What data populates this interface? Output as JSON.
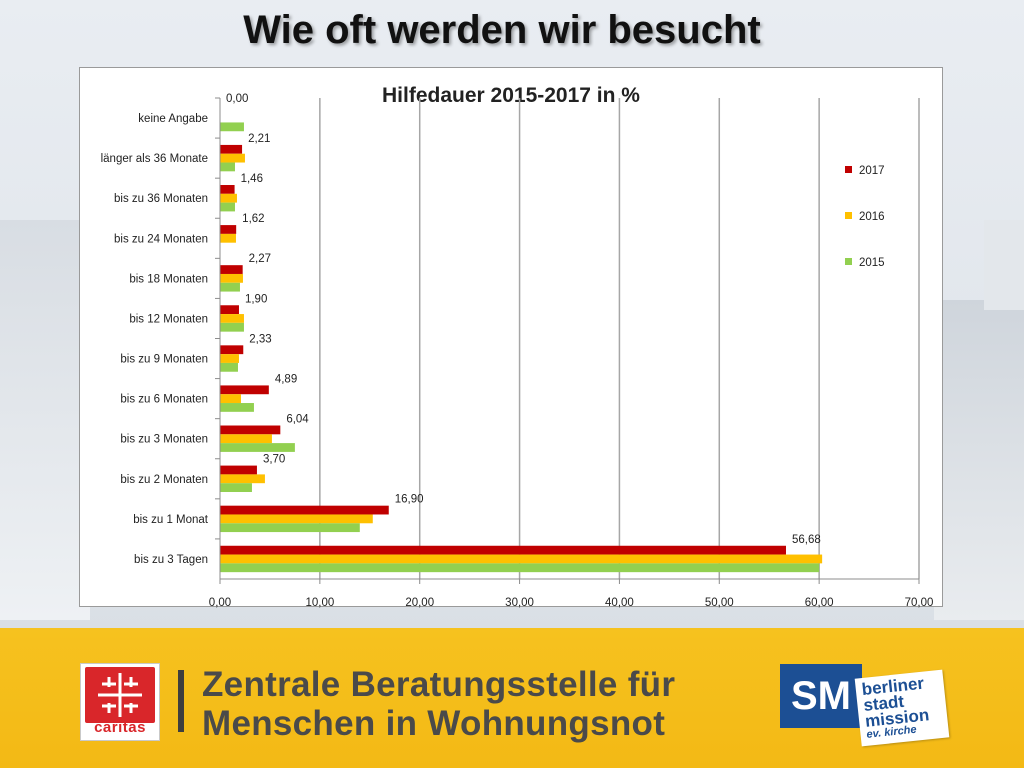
{
  "slide": {
    "title": "Wie oft werden wir besucht"
  },
  "colors": {
    "2017": "#c00000",
    "2016": "#ffc000",
    "2015": "#92d050",
    "grid": "#a6a6a6",
    "footer": "#f4bc17",
    "caritas_red": "#d9262a",
    "sm_blue": "#1c4f94"
  },
  "chart_data": {
    "type": "bar",
    "orientation": "horizontal",
    "title": "Hilfedauer 2015-2017 in %",
    "categories": [
      "keine Angabe",
      "länger als 36 Monate",
      "bis zu 36 Monaten",
      "bis zu 24 Monaten",
      "bis 18 Monaten",
      "bis 12 Monaten",
      "bis zu 9 Monaten",
      "bis zu 6 Monaten",
      "bis zu 3 Monaten",
      "bis zu 2 Monaten",
      "bis zu 1 Monat",
      "bis zu 3 Tagen"
    ],
    "series": [
      {
        "name": "2017",
        "color": "#c00000",
        "values": [
          0.0,
          2.21,
          1.46,
          1.62,
          2.27,
          1.9,
          2.33,
          4.89,
          6.04,
          3.7,
          16.9,
          56.68
        ]
      },
      {
        "name": "2016",
        "color": "#ffc000",
        "values": [
          0.0,
          2.5,
          1.7,
          1.6,
          2.3,
          2.4,
          1.9,
          2.1,
          5.2,
          4.5,
          15.3,
          60.3
        ]
      },
      {
        "name": "2015",
        "color": "#92d050",
        "values": [
          2.4,
          1.5,
          1.5,
          0.0,
          2.0,
          2.4,
          1.8,
          3.4,
          7.5,
          3.2,
          14.0,
          60.0
        ]
      }
    ],
    "data_labels": [
      "0,00",
      "2,21",
      "1,46",
      "1,62",
      "2,27",
      "1,90",
      "2,33",
      "4,89",
      "6,04",
      "3,70",
      "16,90",
      "56,68"
    ],
    "xlim": [
      0,
      70
    ],
    "xticks": [
      "0,00",
      "10,00",
      "20,00",
      "30,00",
      "40,00",
      "50,00",
      "60,00",
      "70,00"
    ],
    "legend": [
      "2017",
      "2016",
      "2015"
    ],
    "legend_position": "right",
    "grid": true
  },
  "footer": {
    "caritas_text": "caritas",
    "line1": "Zentrale Beratungsstelle für",
    "line2": "Menschen in Wohnungsnot",
    "sm_text": "SM",
    "bsm_line1": "berliner",
    "bsm_line2": "stadt",
    "bsm_line3": "mission",
    "bsm_line4": "ev. kirche"
  }
}
